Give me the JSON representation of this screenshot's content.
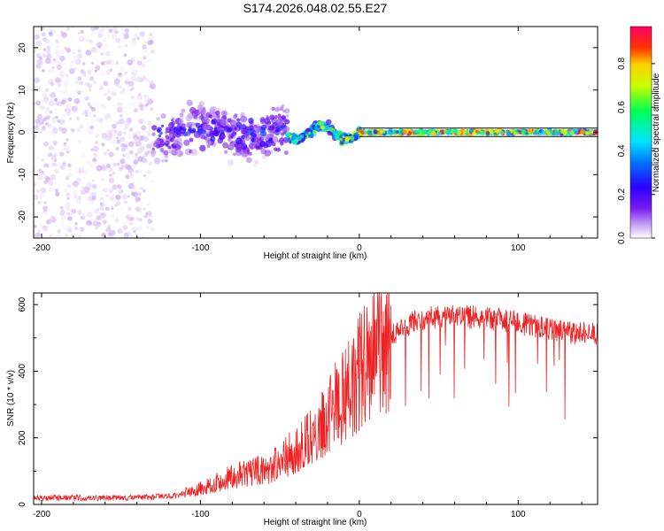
{
  "figure_title": "S174.2026.048.02.55.E27",
  "colors": {
    "snr_line": "#ee2222",
    "band_line": "#000000",
    "colormap": [
      "#ffffff",
      "#dcc6f4",
      "#9a55f0",
      "#6a00e8",
      "#2a00ff",
      "#0077ff",
      "#00e6ff",
      "#00ff66",
      "#c8ff00",
      "#ffd000",
      "#ff3300",
      "#ff0066"
    ]
  },
  "chart_data": [
    {
      "type": "heatmap",
      "title": "",
      "xlabel": "Height of straight line (km)",
      "ylabel": "Frequency (Hz)",
      "xlim": [
        -205,
        150
      ],
      "ylim": [
        -25,
        25
      ],
      "xticks": [
        -200,
        -100,
        0,
        100
      ],
      "yticks": [
        -20,
        -10,
        0,
        10,
        20
      ],
      "colorbar": {
        "label": "Normalized spectral amplitude",
        "range": [
          0.0,
          0.97
        ],
        "ticks": [
          "0.0",
          "0.2",
          "0.4",
          "0.6",
          "0.8"
        ]
      },
      "reference_lines_hz": [
        1,
        -1
      ],
      "segments": [
        {
          "x_range": [
            -205,
            -130
          ],
          "freq_spread": 25,
          "amplitude": 0.07,
          "pattern": "noise"
        },
        {
          "x_range": [
            -130,
            -45
          ],
          "freq_spread": 8,
          "amplitude": 0.35,
          "pattern": "scattered"
        },
        {
          "x_range": [
            -45,
            0
          ],
          "freq_spread": 3,
          "amplitude": 0.55,
          "pattern": "wavy"
        },
        {
          "x_range": [
            0,
            150
          ],
          "freq_spread": 1,
          "amplitude": 0.85,
          "pattern": "steady"
        }
      ]
    },
    {
      "type": "line",
      "title": "",
      "xlabel": "Height of straight line (km)",
      "ylabel": "SNR (10 * v/v)",
      "xlim": [
        -205,
        150
      ],
      "ylim": [
        0,
        635
      ],
      "xticks": [
        -200,
        -100,
        0,
        100
      ],
      "yticks": [
        0,
        200,
        400,
        600
      ],
      "series": [
        {
          "name": "SNR",
          "x": [
            -205,
            -180,
            -150,
            -130,
            -115,
            -105,
            -95,
            -85,
            -75,
            -65,
            -55,
            -45,
            -35,
            -25,
            -15,
            -5,
            5,
            15,
            25,
            35,
            45,
            60,
            80,
            100,
            120,
            135,
            150
          ],
          "values": [
            20,
            20,
            20,
            22,
            28,
            40,
            55,
            75,
            90,
            100,
            115,
            150,
            180,
            240,
            300,
            360,
            430,
            490,
            520,
            550,
            560,
            565,
            560,
            545,
            525,
            515,
            510
          ]
        }
      ]
    }
  ]
}
